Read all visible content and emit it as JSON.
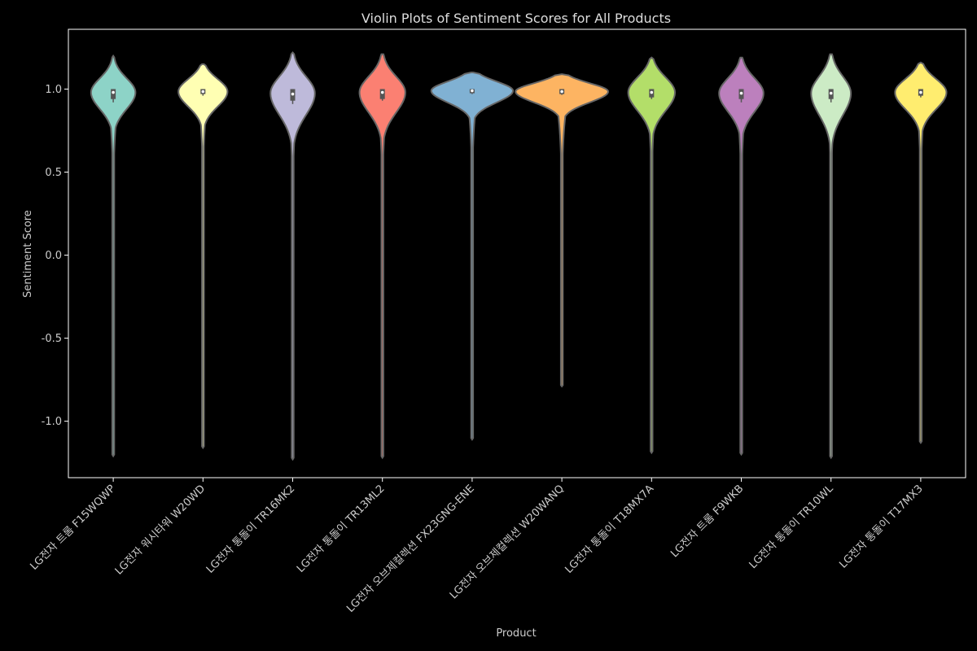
{
  "chart_data": {
    "type": "violin",
    "title": "Violin Plots of Sentiment Scores for All Products",
    "xlabel": "Product",
    "ylabel": "Sentiment Score",
    "ylim": [
      -1.34,
      1.36
    ],
    "yticks": [
      "-1.0",
      "-0.5",
      "0.0",
      "0.5",
      "1.0"
    ],
    "ytick_values": [
      -1.0,
      -0.5,
      0.0,
      0.5,
      1.0
    ],
    "categories": [
      "LG전자 트롬 F15WQWP",
      "LG전자 워시타워 W20WD",
      "LG전자 통돌이 TR16MK2",
      "LG전자 통돌이 TR13ML2",
      "LG전자 오브제컬렉션 FX23GNG-ENE",
      "LG전자 오브제컬렉션 W20WANQ",
      "LG전자 통돌이 T18MX7A",
      "LG전자 트롬 F9WKB",
      "LG전자 통돌이 TR10WL",
      "LG전자 통돌이 T17MX3"
    ],
    "violins": [
      {
        "color": "#8dd3c7",
        "min": -1.21,
        "max": 1.2,
        "q1": 0.94,
        "median": 0.98,
        "q3": 1.0,
        "wlo": 0.92,
        "whi": 1.0,
        "widthScale": 0.95,
        "peak": 0.98,
        "sig_up": 0.085,
        "sig_down": 0.1,
        "tail_w": 0.34,
        "tail_start": 0.72
      },
      {
        "color": "#ffffb3",
        "min": -1.16,
        "max": 1.15,
        "q1": 0.97,
        "median": 0.985,
        "q3": 1.0,
        "wlo": 0.96,
        "whi": 1.0,
        "widthScale": 1.05,
        "peak": 0.985,
        "sig_up": 0.075,
        "sig_down": 0.09,
        "tail_w": 0.25,
        "tail_start": 0.78
      },
      {
        "color": "#bebada",
        "min": -1.23,
        "max": 1.22,
        "q1": 0.93,
        "median": 0.97,
        "q3": 1.0,
        "wlo": 0.91,
        "whi": 1.0,
        "widthScale": 0.95,
        "peak": 0.975,
        "sig_up": 0.1,
        "sig_down": 0.13,
        "tail_w": 0.36,
        "tail_start": 0.65
      },
      {
        "color": "#fb8072",
        "min": -1.22,
        "max": 1.21,
        "q1": 0.94,
        "median": 0.98,
        "q3": 1.0,
        "wlo": 0.93,
        "whi": 1.0,
        "widthScale": 0.98,
        "peak": 0.98,
        "sig_up": 0.095,
        "sig_down": 0.12,
        "tail_w": 0.34,
        "tail_start": 0.68
      },
      {
        "color": "#80b1d3",
        "min": -1.11,
        "max": 1.1,
        "q1": 0.975,
        "median": 0.99,
        "q3": 1.0,
        "wlo": 0.97,
        "whi": 1.0,
        "widthScale": 1.75,
        "peak": 0.99,
        "sig_up": 0.055,
        "sig_down": 0.07,
        "tail_w": 0.16,
        "tail_start": 0.84
      },
      {
        "color": "#fdb462",
        "min": -0.79,
        "max": 1.09,
        "q1": 0.97,
        "median": 0.985,
        "q3": 1.0,
        "wlo": 0.965,
        "whi": 1.0,
        "widthScale": 1.98,
        "peak": 0.985,
        "sig_up": 0.05,
        "sig_down": 0.065,
        "tail_w": 0.17,
        "tail_start": 0.84
      },
      {
        "color": "#b3de69",
        "min": -1.19,
        "max": 1.19,
        "q1": 0.95,
        "median": 0.98,
        "q3": 1.0,
        "wlo": 0.94,
        "whi": 1.0,
        "widthScale": 1.0,
        "peak": 0.98,
        "sig_up": 0.09,
        "sig_down": 0.11,
        "tail_w": 0.3,
        "tail_start": 0.72
      },
      {
        "color": "#bc80bd",
        "min": -1.2,
        "max": 1.19,
        "q1": 0.94,
        "median": 0.975,
        "q3": 1.0,
        "wlo": 0.92,
        "whi": 1.0,
        "widthScale": 0.95,
        "peak": 0.975,
        "sig_up": 0.09,
        "sig_down": 0.11,
        "tail_w": 0.34,
        "tail_start": 0.7
      },
      {
        "color": "#ccebc5",
        "min": -1.22,
        "max": 1.21,
        "q1": 0.94,
        "median": 0.975,
        "q3": 1.0,
        "wlo": 0.92,
        "whi": 1.0,
        "widthScale": 0.85,
        "peak": 0.975,
        "sig_up": 0.1,
        "sig_down": 0.13,
        "tail_w": 0.36,
        "tail_start": 0.62
      },
      {
        "color": "#ffed6f",
        "min": -1.13,
        "max": 1.16,
        "q1": 0.96,
        "median": 0.98,
        "q3": 1.0,
        "wlo": 0.95,
        "whi": 1.0,
        "widthScale": 1.1,
        "peak": 0.98,
        "sig_up": 0.08,
        "sig_down": 0.1,
        "tail_w": 0.25,
        "tail_start": 0.76
      }
    ],
    "colors": {
      "background": "#000000",
      "axes": "#ffffff",
      "text": "#cccccc",
      "violin_edge": "#555555"
    },
    "grid": false,
    "legend": "none"
  }
}
